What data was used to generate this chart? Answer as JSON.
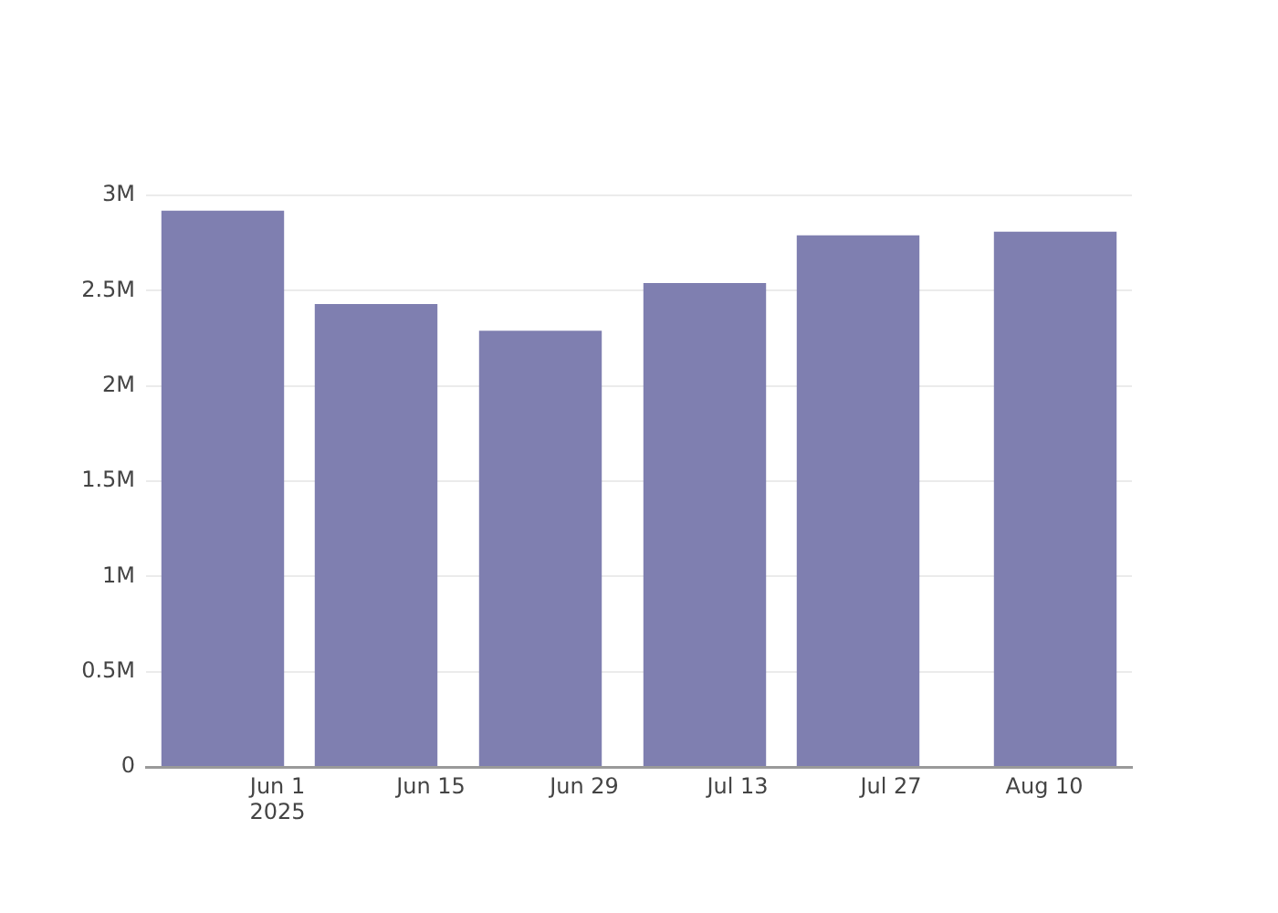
{
  "chart_data": {
    "type": "bar",
    "x": [
      "2025-05-27",
      "2025-06-10",
      "2025-06-25",
      "2025-07-10",
      "2025-07-24",
      "2025-08-11"
    ],
    "values": [
      2920000,
      2430000,
      2290000,
      2540000,
      2790000,
      2810000
    ],
    "color": "#7f7fb0",
    "xlim": [
      "2025-05-20",
      "2025-08-18"
    ],
    "xticks": [
      {
        "value": "2025-06-01",
        "label": "Jun 1\n2025"
      },
      {
        "value": "2025-06-15",
        "label": "Jun 15"
      },
      {
        "value": "2025-06-29",
        "label": "Jun 29"
      },
      {
        "value": "2025-07-13",
        "label": "Jul 13"
      },
      {
        "value": "2025-07-27",
        "label": "Jul 27"
      },
      {
        "value": "2025-08-10",
        "label": "Aug 10"
      }
    ],
    "ylim": [
      0,
      3000000
    ],
    "yticks": [
      0,
      {
        "value": 500000,
        "label": "0.5M"
      },
      {
        "value": 1000000,
        "label": "1M"
      },
      {
        "value": 1500000,
        "label": "1.5M"
      },
      {
        "value": 2000000,
        "label": "2M"
      },
      {
        "value": 2500000,
        "label": "2.5M"
      },
      {
        "value": 3000000,
        "label": "3M"
      }
    ],
    "grid": "y",
    "legend": false
  }
}
